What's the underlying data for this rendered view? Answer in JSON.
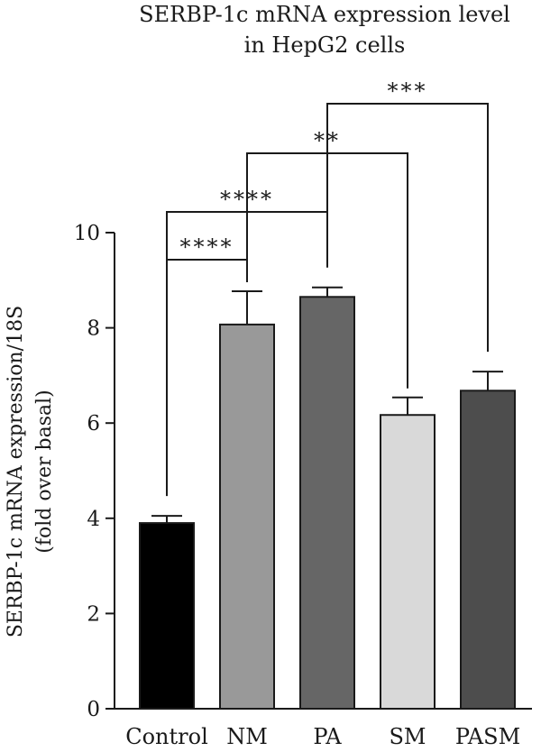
{
  "chart_data": {
    "type": "bar",
    "title_lines": [
      "SERBP-1c mRNA expression level",
      "in HepG2 cells"
    ],
    "ylabel_lines": [
      "SERBP-1c mRNA expression/18S",
      "(fold over basal)"
    ],
    "xlabel": "",
    "ylim": [
      0,
      10
    ],
    "yticks": [
      "0",
      "2",
      "4",
      "6",
      "8",
      "10"
    ],
    "categories": [
      "Control",
      "NM",
      "PA",
      "SM",
      "PASM"
    ],
    "values": [
      3.9,
      8.07,
      8.65,
      6.17,
      6.68
    ],
    "errors": [
      0.15,
      0.7,
      0.2,
      0.37,
      0.4
    ],
    "bar_colors": [
      "#000000",
      "#999999",
      "#666666",
      "#d9d9d9",
      "#4d4d4d"
    ],
    "grid": false,
    "significance": [
      {
        "from": "Control",
        "to": "NM",
        "label": "****"
      },
      {
        "from": "Control",
        "to": "PA",
        "label": "****"
      },
      {
        "from": "NM",
        "to": "SM",
        "label": "**"
      },
      {
        "from": "PA",
        "to": "PASM",
        "label": "***"
      }
    ]
  }
}
